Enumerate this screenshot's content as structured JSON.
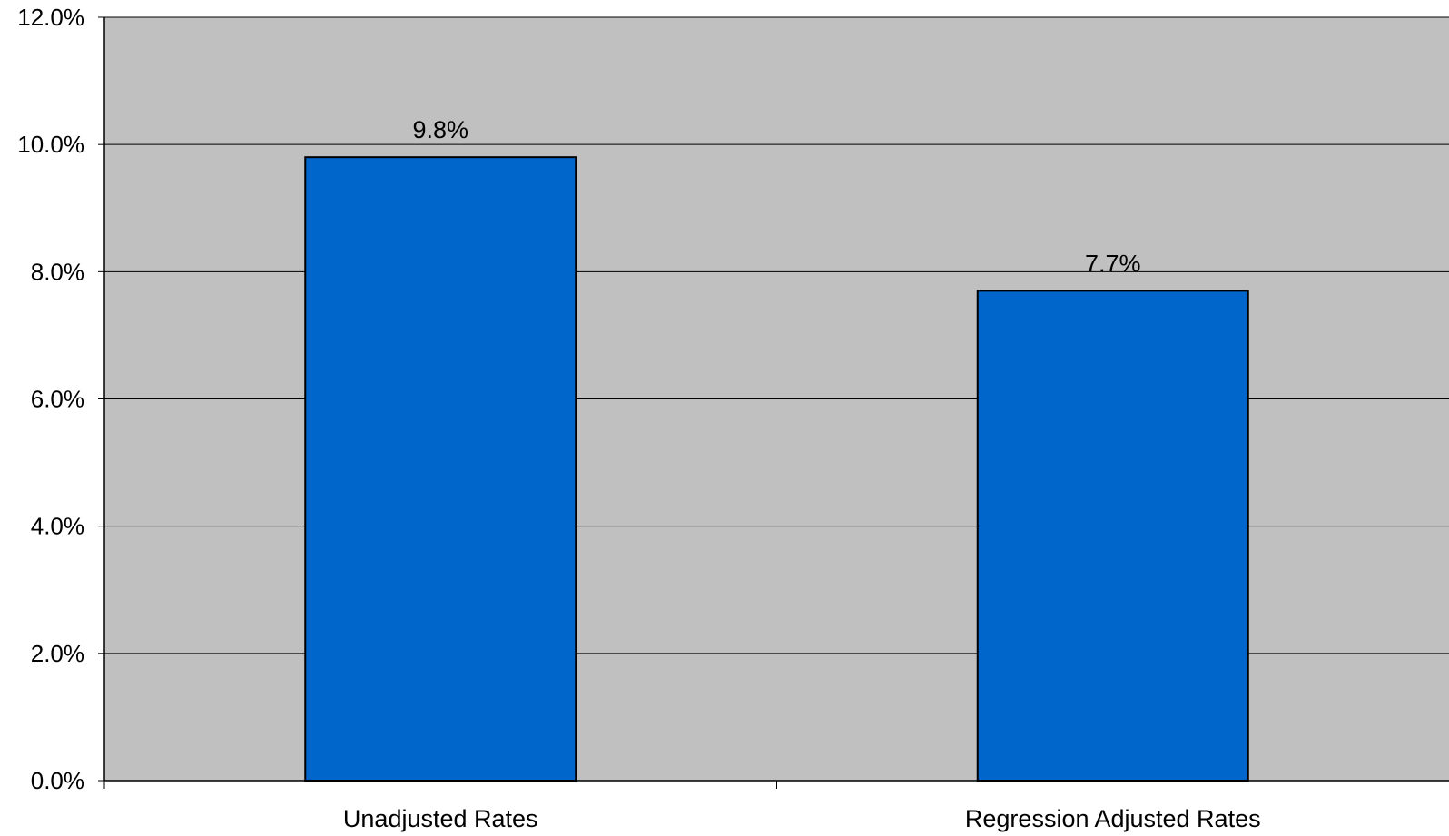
{
  "chart_data": {
    "type": "bar",
    "categories": [
      "Unadjusted Rates",
      "Regression Adjusted Rates"
    ],
    "values": [
      9.8,
      7.7
    ],
    "data_labels": [
      "9.8%",
      "7.7%"
    ],
    "ylim": [
      0,
      12
    ],
    "yticks": [
      0,
      2,
      4,
      6,
      8,
      10,
      12
    ],
    "ytick_labels": [
      "0.0%",
      "2.0%",
      "4.0%",
      "6.0%",
      "8.0%",
      "10.0%",
      "12.0%"
    ],
    "title": "",
    "xlabel": "",
    "ylabel": "",
    "grid": "horizontal",
    "legend": "none",
    "colors": {
      "plot_background": "#C0C0C0",
      "bar_fill": "#0066CC",
      "bar_stroke": "#000000",
      "gridline": "#000000"
    }
  }
}
